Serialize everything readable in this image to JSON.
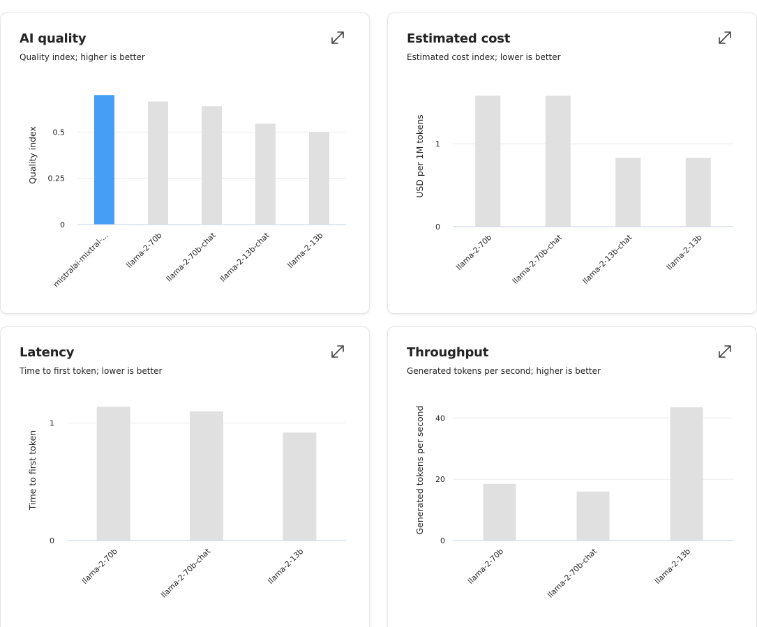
{
  "cards": [
    {
      "title": "AI quality",
      "subtitle": "Quality index; higher is better",
      "expand_icon": "expand-icon",
      "chart_data": {
        "type": "bar",
        "ylabel": "Quality index",
        "ylim": [
          0,
          0.75
        ],
        "yticks": [
          0,
          0.25,
          0.5
        ],
        "ytick_labels": [
          "0",
          "0.25",
          "0.5"
        ],
        "categories": [
          "mistralai-mixtral-...",
          "llama-2-70b",
          "llama-2-70b-chat",
          "llama-2-13b-chat",
          "llama-2-13b"
        ],
        "values": [
          0.7,
          0.665,
          0.64,
          0.545,
          0.5
        ],
        "highlight_index": 0,
        "grid": true
      }
    },
    {
      "title": "Estimated cost",
      "subtitle": "Estimated cost index; lower is better",
      "expand_icon": "expand-icon",
      "chart_data": {
        "type": "bar",
        "ylabel": "USD per 1M tokens",
        "ylim": [
          0,
          1.7
        ],
        "yticks": [
          0,
          1
        ],
        "ytick_labels": [
          "0",
          "1"
        ],
        "categories": [
          "llama-2-70b",
          "llama-2-70b-chat",
          "llama-2-13b-chat",
          "llama-2-13b"
        ],
        "values": [
          1.58,
          1.58,
          0.83,
          0.83
        ],
        "highlight_index": -1,
        "grid": true
      }
    },
    {
      "title": "Latency",
      "subtitle": "Time to first token; lower is better",
      "expand_icon": "expand-icon",
      "chart_data": {
        "type": "bar",
        "ylabel": "Time to first token",
        "ylim": [
          0,
          1.2
        ],
        "yticks": [
          0,
          1
        ],
        "ytick_labels": [
          "0",
          "1"
        ],
        "categories": [
          "llama-2-70b",
          "llama-2-70b-chat",
          "llama-2-13b"
        ],
        "values": [
          1.14,
          1.1,
          0.92
        ],
        "highlight_index": -1,
        "grid": true
      }
    },
    {
      "title": "Throughput",
      "subtitle": "Generated tokens per second; higher is better",
      "expand_icon": "expand-icon",
      "chart_data": {
        "type": "bar",
        "ylabel": "Generated tokens per second",
        "ylim": [
          0,
          46
        ],
        "yticks": [
          0,
          20,
          40
        ],
        "ytick_labels": [
          "0",
          "20",
          "40"
        ],
        "categories": [
          "llama-2-70b",
          "llama-2-70b-chat",
          "llama-2-13b"
        ],
        "values": [
          18.5,
          16,
          43.5
        ],
        "highlight_index": -1,
        "grid": true
      }
    }
  ],
  "colors": {
    "highlight_bar": "#479ef5",
    "bar": "#e0e0e0",
    "gridline": "#ebebeb",
    "baseline": "#d1d9e6"
  }
}
